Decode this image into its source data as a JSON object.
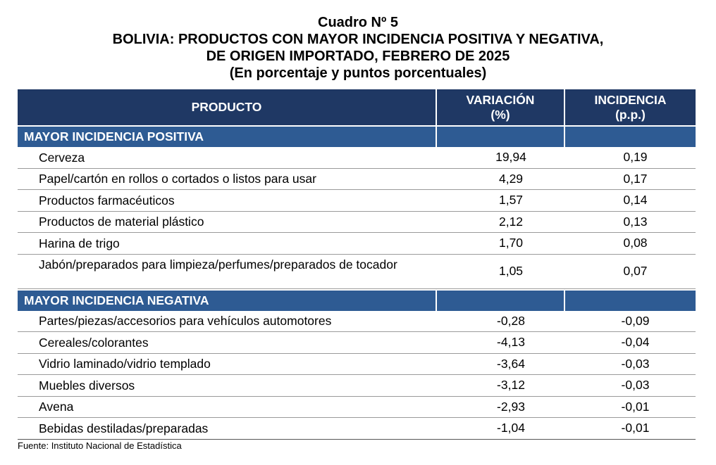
{
  "title": {
    "line1": "Cuadro Nº 5",
    "line2": "BOLIVIA: PRODUCTOS CON MAYOR INCIDENCIA POSITIVA Y NEGATIVA,",
    "line3": "DE ORIGEN IMPORTADO, FEBRERO DE 2025",
    "line4": "(En porcentaje y puntos porcentuales)"
  },
  "header": {
    "product": "PRODUCTO",
    "variation_line1": "VARIACIÓN",
    "variation_line2": "(%)",
    "incidence_line1": "INCIDENCIA",
    "incidence_line2": "(p.p.)"
  },
  "sections": {
    "positive": {
      "label": "MAYOR INCIDENCIA POSITIVA",
      "rows": [
        {
          "product": "Cerveza",
          "variation": "19,94",
          "incidence": "0,19"
        },
        {
          "product": "Papel/cartón en rollos o cortados o listos para usar",
          "variation": "4,29",
          "incidence": "0,17"
        },
        {
          "product": "Productos farmacéuticos",
          "variation": "1,57",
          "incidence": "0,14"
        },
        {
          "product": "Productos de material plástico",
          "variation": "2,12",
          "incidence": "0,13"
        },
        {
          "product": "Harina de trigo",
          "variation": "1,70",
          "incidence": "0,08"
        },
        {
          "product": "Jabón/preparados para limpieza/perfumes/preparados de tocador",
          "variation": "1,05",
          "incidence": "0,07"
        }
      ]
    },
    "negative": {
      "label": "MAYOR INCIDENCIA NEGATIVA",
      "rows": [
        {
          "product": "Partes/piezas/accesorios para vehículos automotores",
          "variation": "-0,28",
          "incidence": "-0,09"
        },
        {
          "product": "Cereales/colorantes",
          "variation": "-4,13",
          "incidence": "-0,04"
        },
        {
          "product": "Vidrio laminado/vidrio templado",
          "variation": "-3,64",
          "incidence": "-0,03"
        },
        {
          "product": "Muebles diversos",
          "variation": "-3,12",
          "incidence": "-0,03"
        },
        {
          "product": "Avena",
          "variation": "-2,93",
          "incidence": "-0,01"
        },
        {
          "product": "Bebidas destiladas/preparadas",
          "variation": "-1,04",
          "incidence": "-0,01"
        }
      ]
    }
  },
  "source": "Fuente: Instituto Nacional de Estadística",
  "colors": {
    "header_bg": "#1f3864",
    "section_bg": "#2e5b93"
  }
}
